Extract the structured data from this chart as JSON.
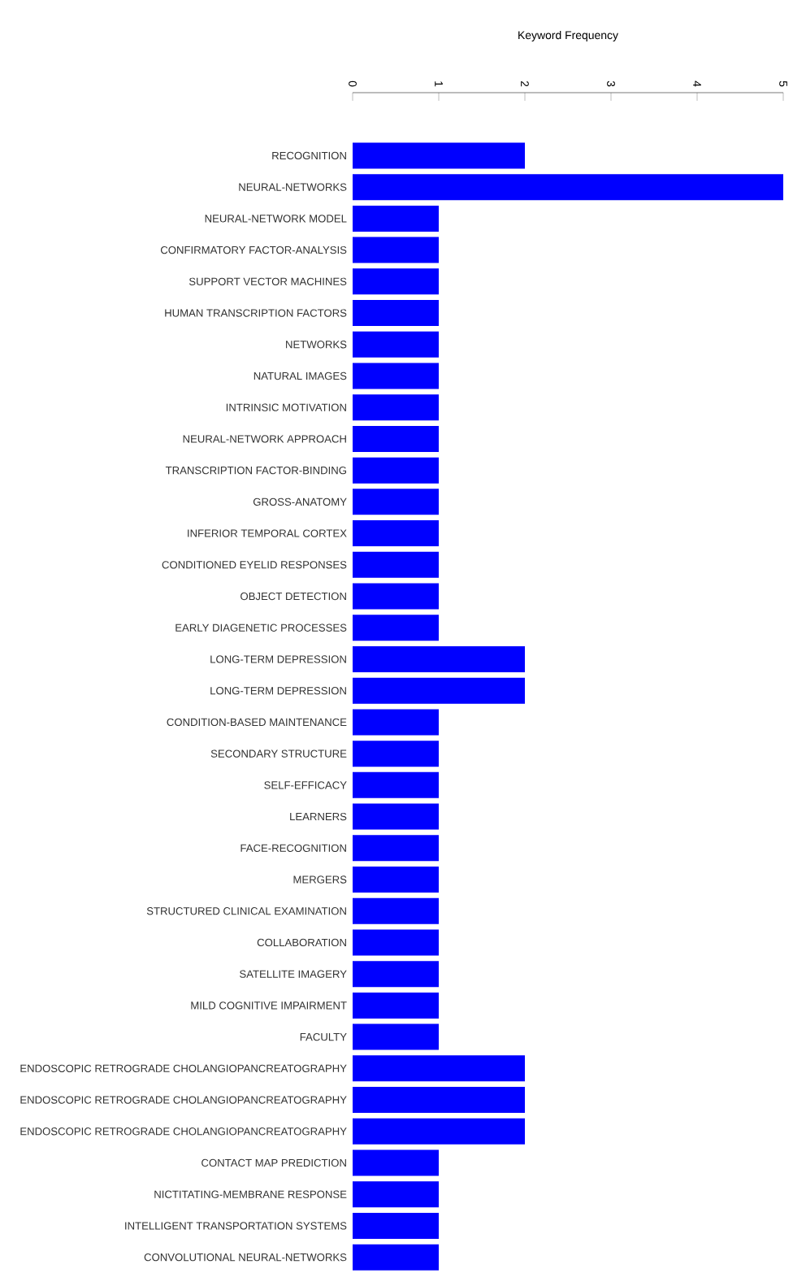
{
  "chart_data": {
    "type": "bar",
    "orientation": "horizontal",
    "xlabel": "Keyword Frequency",
    "color": "#0000ff",
    "categories": [
      "RECOGNITION",
      "NEURAL-NETWORKS",
      "NEURAL-NETWORK MODEL",
      "CONFIRMATORY FACTOR-ANALYSIS",
      "SUPPORT VECTOR MACHINES",
      "HUMAN TRANSCRIPTION FACTORS",
      "NETWORKS",
      "NATURAL IMAGES",
      "INTRINSIC MOTIVATION",
      "NEURAL-NETWORK APPROACH",
      "TRANSCRIPTION FACTOR-BINDING",
      "GROSS-ANATOMY",
      "INFERIOR TEMPORAL CORTEX",
      "CONDITIONED EYELID RESPONSES",
      "OBJECT DETECTION",
      "EARLY DIAGENETIC PROCESSES",
      "LONG-TERM DEPRESSION",
      "LONG-TERM DEPRESSION",
      "CONDITION-BASED MAINTENANCE",
      "SECONDARY STRUCTURE",
      "SELF-EFFICACY",
      "LEARNERS",
      "FACE-RECOGNITION",
      "MERGERS",
      "STRUCTURED CLINICAL EXAMINATION",
      "COLLABORATION",
      "SATELLITE IMAGERY",
      "MILD COGNITIVE IMPAIRMENT",
      "FACULTY",
      "ENDOSCOPIC RETROGRADE CHOLANGIOPANCREATOGRAPHY",
      "ENDOSCOPIC RETROGRADE CHOLANGIOPANCREATOGRAPHY",
      "ENDOSCOPIC RETROGRADE CHOLANGIOPANCREATOGRAPHY",
      "CONTACT MAP PREDICTION",
      "NICTITATING-MEMBRANE RESPONSE",
      "INTELLIGENT TRANSPORTATION SYSTEMS",
      "CONVOLUTIONAL NEURAL-NETWORKS"
    ],
    "values": [
      2,
      5,
      1,
      1,
      1,
      1,
      1,
      1,
      1,
      1,
      1,
      1,
      1,
      1,
      1,
      1,
      2,
      2,
      1,
      1,
      1,
      1,
      1,
      1,
      1,
      1,
      1,
      1,
      1,
      2,
      2,
      2,
      1,
      1,
      1,
      1
    ],
    "xlim": [
      0,
      5
    ],
    "xticks": [
      0,
      1,
      2,
      3,
      4,
      5
    ]
  }
}
